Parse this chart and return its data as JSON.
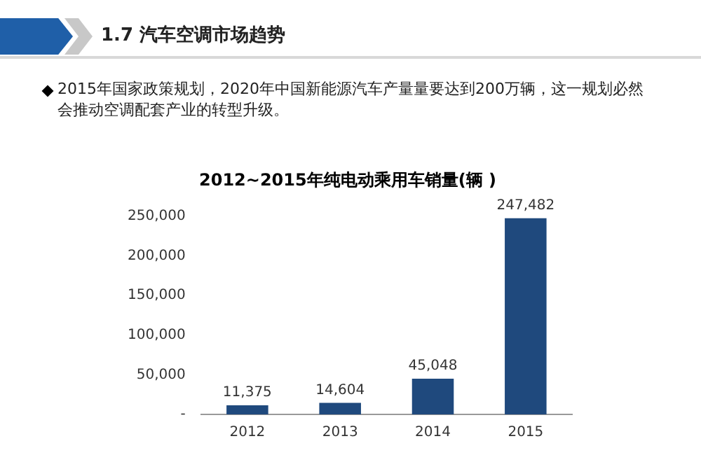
{
  "chart_data": {
    "type": "bar",
    "title": "2012~2015年纯电动乘用车销量(辆 )",
    "annotations": [
      "1.7 汽车空调市场趋势",
      "2015年国家政策规划，2020年中国新能源汽车产量量要达到200万辆，这一规划必然会推动空调配套产业的转型升级。"
    ],
    "categories": [
      "2012",
      "2013",
      "2014",
      "2015"
    ],
    "values": [
      11375,
      14604,
      45048,
      247482
    ],
    "value_labels": [
      "11,375",
      "14,604",
      "45,048",
      "247,482"
    ],
    "color": "#1f497d",
    "ylim": [
      0,
      250000
    ],
    "yticks": [
      {
        "value": 0,
        "label": "-"
      },
      {
        "value": 50000,
        "label": "50,000"
      },
      {
        "value": 100000,
        "label": "100,000"
      },
      {
        "value": 150000,
        "label": "150,000"
      },
      {
        "value": 200000,
        "label": "200,000"
      },
      {
        "value": 250000,
        "label": "250,000"
      }
    ],
    "grid": false,
    "legend": false
  }
}
